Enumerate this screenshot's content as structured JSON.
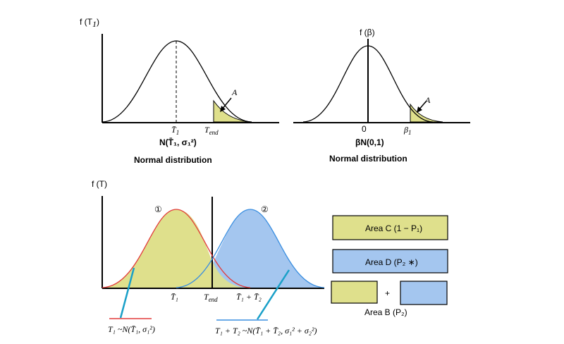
{
  "panel1": {
    "y_label": "f (T",
    "y_sub": "1",
    "y_close": ")",
    "mean_label": "T̄",
    "mean_sub": "1",
    "tend_label": "T",
    "tend_sub": "end",
    "area_label": "A",
    "dist_label": "N(T̄₁, σ₁²)",
    "caption": "Normal distribution"
  },
  "panel2": {
    "y_label": "f (β)",
    "zero_label": "0",
    "beta_label": "β",
    "beta_sub": "1",
    "area_label": "A",
    "dist_label": "βN(0,1)",
    "caption": "Normal distribution"
  },
  "panel3": {
    "y_label": "f (T)",
    "curve1_marker": "①",
    "curve2_marker": "②",
    "x_mean1": "T̄₁",
    "x_tend": "T",
    "x_tend_sub": "end",
    "x_sum": "T̄₁ + T̄₂",
    "dist1": "T₁ ~N(T̄₁, σ₁²)",
    "dist2": "T₁ + T₂ ~N(T̄₁ + T̄₂, σ₁² + σ₂²)"
  },
  "legend": {
    "area_c": "Area C  (1 − P₁)",
    "area_d": "Area D  (P₂ ∗)",
    "plus": "+",
    "area_b": "Area B  (P₂)"
  },
  "colors": {
    "yellow": "#dfe08c",
    "blue": "#a4c6ef",
    "red": "#e23a3a",
    "blue_line": "#3a8ee0",
    "teal": "#1aa0c8"
  }
}
